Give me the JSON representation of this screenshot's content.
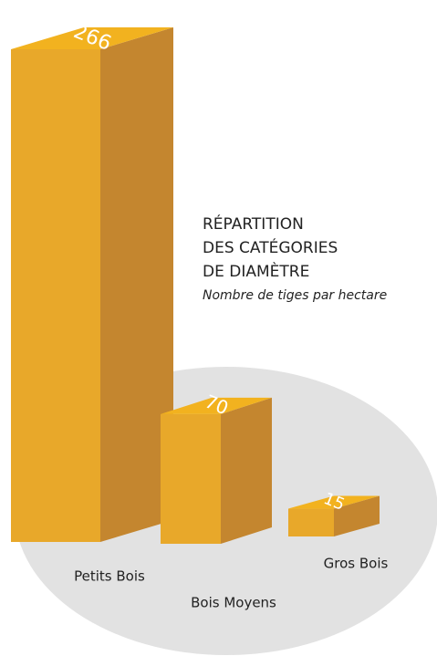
{
  "chart_data": {
    "type": "bar",
    "title": [
      "RÉPARTITION",
      "DES CATÉGORIES",
      "DE DIAMÈTRE"
    ],
    "subtitle": "Nombre de tiges par hectare",
    "categories": [
      "Petits Bois",
      "Bois Moyens",
      "Gros Bois"
    ],
    "values": [
      266,
      70,
      15
    ],
    "color": "#e8a82a"
  }
}
